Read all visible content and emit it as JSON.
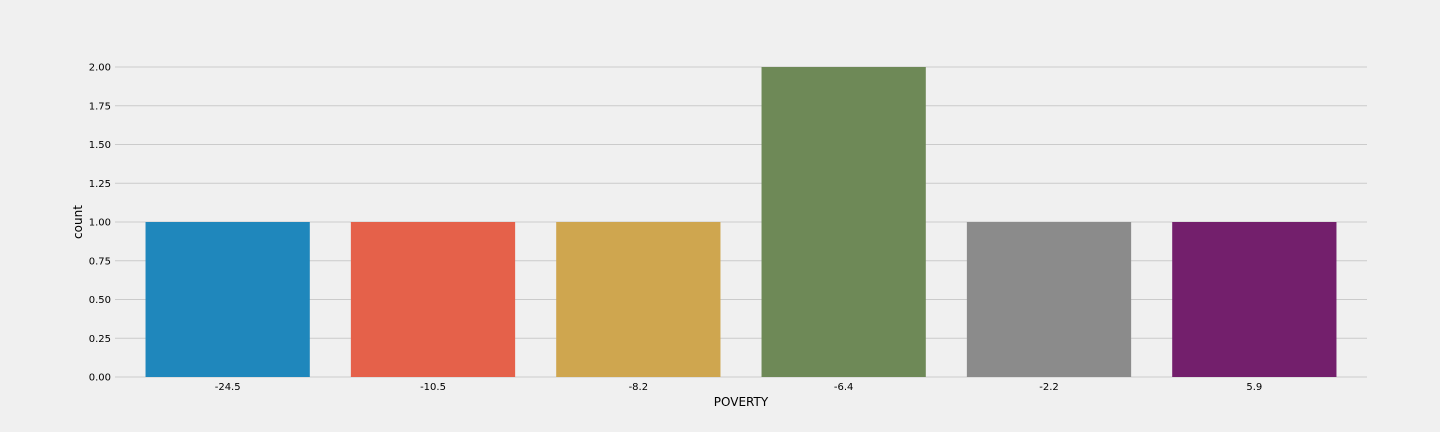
{
  "chart_data": {
    "type": "bar",
    "categories": [
      "-24.5",
      "-10.5",
      "-8.2",
      "-6.4",
      "-2.2",
      "5.9"
    ],
    "values": [
      1,
      1,
      1,
      2,
      1,
      1
    ],
    "colors": [
      "#1f87bc",
      "#e5614a",
      "#cfa64f",
      "#6e8957",
      "#8b8b8b",
      "#731f6c"
    ],
    "xlabel": "POVERTY",
    "ylabel": "count",
    "ylim": [
      0,
      2
    ],
    "yticks": [
      "0.00",
      "0.25",
      "0.50",
      "0.75",
      "1.00",
      "1.25",
      "1.50",
      "1.75",
      "2.00"
    ],
    "grid": true
  }
}
